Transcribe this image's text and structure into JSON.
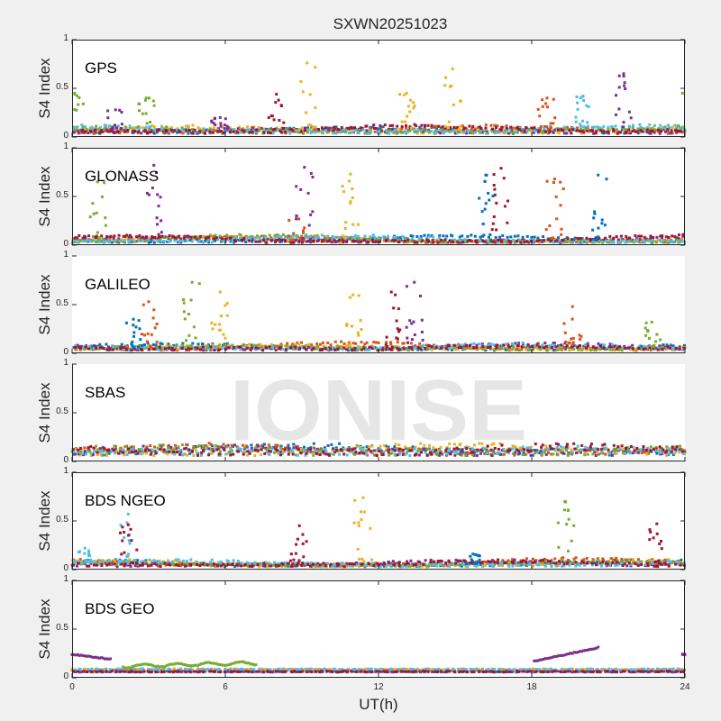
{
  "chart_data": {
    "type": "scatter",
    "title": "SXWN20251023",
    "xlabel": "UT(h)",
    "ylabel": "S4 Index",
    "xlim": [
      0,
      24
    ],
    "ylim": [
      0,
      1
    ],
    "xticks": [
      "0",
      "6",
      "12",
      "18",
      "24"
    ],
    "yticks": [
      "0",
      "0.5",
      "1"
    ],
    "watermark": "IONISE",
    "colors": [
      "#0072BD",
      "#D95319",
      "#EDB120",
      "#7E2F8E",
      "#77AC30",
      "#4DBEEE",
      "#A2142F"
    ],
    "panels": [
      {
        "label": "GPS",
        "baseline": 0.07,
        "events": [
          {
            "t": 0.1,
            "peak": 0.45,
            "series": 4
          },
          {
            "t": 1.7,
            "peak": 0.28,
            "series": 3
          },
          {
            "t": 2.9,
            "peak": 0.4,
            "series": 4
          },
          {
            "t": 5.8,
            "peak": 0.2,
            "series": 3
          },
          {
            "t": 8.0,
            "peak": 0.44,
            "series": 6
          },
          {
            "t": 9.2,
            "peak": 0.76,
            "series": 2
          },
          {
            "t": 13.1,
            "peak": 0.45,
            "series": 2
          },
          {
            "t": 14.9,
            "peak": 0.7,
            "series": 2
          },
          {
            "t": 18.6,
            "peak": 0.4,
            "series": 1
          },
          {
            "t": 20.0,
            "peak": 0.42,
            "series": 5
          },
          {
            "t": 21.6,
            "peak": 0.65,
            "series": 3
          },
          {
            "t": 23.9,
            "peak": 0.45,
            "series": 4
          }
        ]
      },
      {
        "label": "GLONASS",
        "baseline": 0.05,
        "events": [
          {
            "t": 1.0,
            "peak": 0.65,
            "series": 4
          },
          {
            "t": 3.2,
            "peak": 0.82,
            "series": 3
          },
          {
            "t": 8.8,
            "peak": 0.3,
            "series": 1
          },
          {
            "t": 9.1,
            "peak": 0.8,
            "series": 3
          },
          {
            "t": 10.9,
            "peak": 0.73,
            "series": 2
          },
          {
            "t": 16.2,
            "peak": 0.72,
            "series": 0
          },
          {
            "t": 16.8,
            "peak": 0.79,
            "series": 6
          },
          {
            "t": 18.9,
            "peak": 0.68,
            "series": 1
          },
          {
            "t": 20.6,
            "peak": 0.72,
            "series": 0
          }
        ]
      },
      {
        "label": "GALILEO",
        "baseline": 0.06,
        "events": [
          {
            "t": 2.4,
            "peak": 0.35,
            "series": 0
          },
          {
            "t": 3.0,
            "peak": 0.53,
            "series": 1
          },
          {
            "t": 4.7,
            "peak": 0.73,
            "series": 4
          },
          {
            "t": 5.8,
            "peak": 0.63,
            "series": 2
          },
          {
            "t": 11.0,
            "peak": 0.6,
            "series": 2
          },
          {
            "t": 12.5,
            "peak": 0.63,
            "series": 6
          },
          {
            "t": 13.4,
            "peak": 0.73,
            "series": 3
          },
          {
            "t": 19.6,
            "peak": 0.48,
            "series": 1
          },
          {
            "t": 22.7,
            "peak": 0.32,
            "series": 4
          }
        ]
      },
      {
        "label": "SBAS",
        "baseline": 0.12,
        "events": []
      },
      {
        "label": "BDS NGEO",
        "baseline": 0.06,
        "events": [
          {
            "t": 0.5,
            "peak": 0.22,
            "series": 5
          },
          {
            "t": 2.2,
            "peak": 0.57,
            "series": 5
          },
          {
            "t": 2.2,
            "peak": 0.46,
            "series": 6
          },
          {
            "t": 8.9,
            "peak": 0.45,
            "series": 6
          },
          {
            "t": 11.4,
            "peak": 0.74,
            "series": 2
          },
          {
            "t": 15.7,
            "peak": 0.16,
            "series": 0
          },
          {
            "t": 19.3,
            "peak": 0.7,
            "series": 4
          },
          {
            "t": 22.9,
            "peak": 0.47,
            "series": 6
          }
        ]
      },
      {
        "label": "BDS GEO",
        "baseline": 0.07,
        "tracks": [
          {
            "series": 3,
            "x": [
              0,
              1.5
            ],
            "y": [
              0.24,
              0.19
            ]
          },
          {
            "series": 4,
            "x": [
              2.0,
              7.2
            ],
            "y": [
              0.12,
              0.15
            ]
          },
          {
            "series": 3,
            "x": [
              18.1,
              20.6
            ],
            "y": [
              0.17,
              0.31
            ]
          },
          {
            "series": 3,
            "x": [
              23.9,
              24
            ],
            "y": [
              0.24,
              0.24
            ]
          }
        ],
        "events": []
      }
    ]
  }
}
